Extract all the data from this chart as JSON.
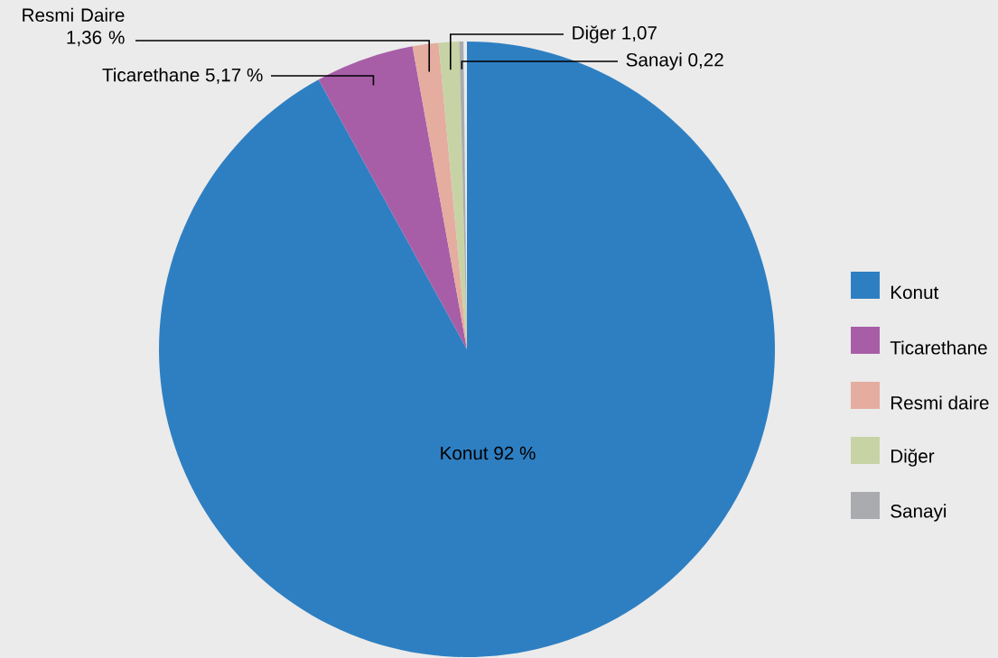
{
  "chart_data": {
    "type": "pie",
    "categories": [
      "Konut",
      "Ticarethane",
      "Resmi daire",
      "Diğer",
      "Sanayi"
    ],
    "values": [
      92,
      5.17,
      1.36,
      1.07,
      0.22
    ],
    "colors": [
      "#2e7fc2",
      "#a75ea7",
      "#e5aca0",
      "#c8d3a5",
      "#a9abae"
    ],
    "value_labels": [
      "Konut 92 %",
      "Ticarethane 5,17 %",
      "Resmi Daire 1,36 %",
      "Diğer 1,07",
      "Sanayi 0,22"
    ],
    "legend": "right"
  }
}
